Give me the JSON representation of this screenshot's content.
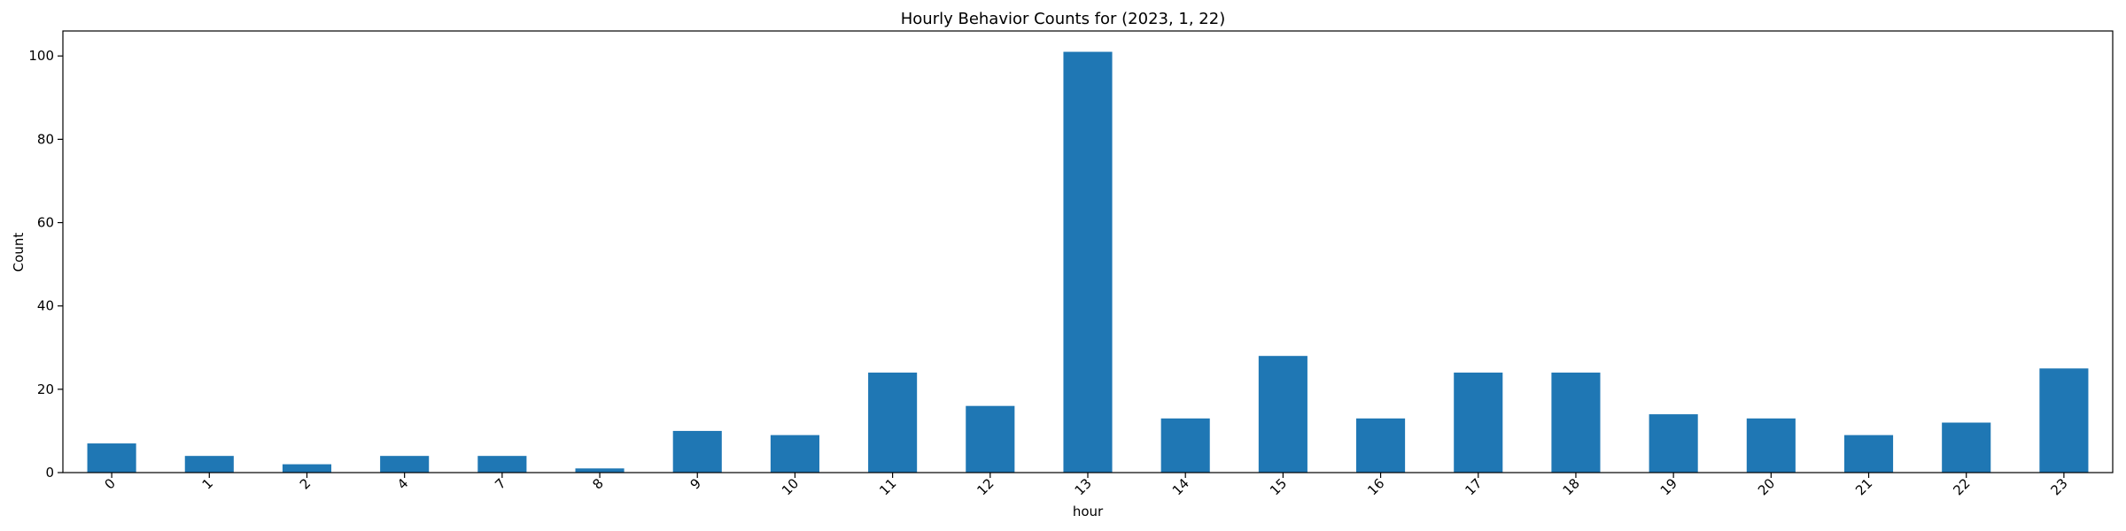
{
  "chart_data": {
    "type": "bar",
    "title": "Hourly Behavior Counts for (2023, 1, 22)",
    "xlabel": "hour",
    "ylabel": "Count",
    "categories": [
      "0",
      "1",
      "2",
      "4",
      "7",
      "8",
      "9",
      "10",
      "11",
      "12",
      "13",
      "14",
      "15",
      "16",
      "17",
      "18",
      "19",
      "20",
      "21",
      "22",
      "23"
    ],
    "values": [
      7,
      4,
      2,
      4,
      4,
      1,
      10,
      9,
      24,
      16,
      101,
      13,
      28,
      13,
      24,
      24,
      14,
      13,
      9,
      12,
      25
    ],
    "ylim": [
      0,
      106
    ],
    "yticks": [
      0,
      20,
      40,
      60,
      80,
      100
    ],
    "bar_color": "#1f77b4",
    "grid": false,
    "legend": false
  }
}
